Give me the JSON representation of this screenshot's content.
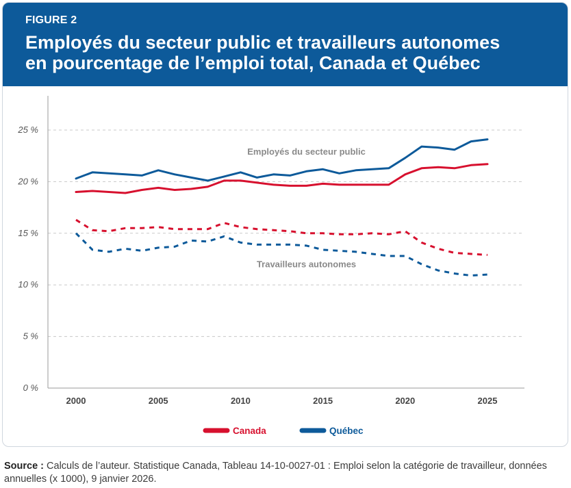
{
  "figure": {
    "label": "FIGURE 2",
    "title_line1": "Employés du secteur public et travailleurs autonomes",
    "title_line2": "en pourcentage de l’emploi total, Canada et Québec"
  },
  "source": {
    "label": "Source :",
    "text": " Calculs  de l’auteur. Statistique Canada, Tableau 14-10-0027-01 : Emploi selon la catégorie de travailleur, données annuelles (x 1000), 9 janvier 2026."
  },
  "colors": {
    "canada": "#d7102e",
    "quebec": "#0d5a9a"
  },
  "chart_data": {
    "type": "line",
    "ylim": [
      0,
      25
    ],
    "xlim": [
      2000,
      2025
    ],
    "y_ticks": [
      0,
      5,
      10,
      15,
      20,
      25
    ],
    "y_tick_labels": [
      "0 %",
      "5 %",
      "10 %",
      "15 %",
      "20 %",
      "25 %"
    ],
    "x_ticks": [
      2000,
      2005,
      2010,
      2015,
      2020,
      2025
    ],
    "x_tick_labels": [
      "2000",
      "2005",
      "2010",
      "2015",
      "2020",
      "2025"
    ],
    "grid": "horizontal-dashed",
    "legend_position": "bottom",
    "legend": [
      {
        "label": "Canada",
        "color": "#d7102e"
      },
      {
        "label": "Québec",
        "color": "#0d5a9a"
      }
    ],
    "annotations": [
      {
        "text": "Employés du secteur public",
        "x": 2014,
        "y": 22.6
      },
      {
        "text": "Travailleurs autonomes",
        "x": 2014,
        "y": 11.7
      }
    ],
    "x": [
      2000,
      2001,
      2002,
      2003,
      2004,
      2005,
      2006,
      2007,
      2008,
      2009,
      2010,
      2011,
      2012,
      2013,
      2014,
      2015,
      2016,
      2017,
      2018,
      2019,
      2020,
      2021,
      2022,
      2023,
      2024,
      2025
    ],
    "series": [
      {
        "name": "Canada",
        "group": "Employés du secteur public",
        "style": "solid",
        "values": [
          19.0,
          19.1,
          19.0,
          18.9,
          19.2,
          19.4,
          19.2,
          19.3,
          19.5,
          20.1,
          20.1,
          19.9,
          19.7,
          19.6,
          19.6,
          19.8,
          19.7,
          19.7,
          19.7,
          19.7,
          20.7,
          21.3,
          21.4,
          21.3,
          21.6,
          21.7
        ]
      },
      {
        "name": "Québec",
        "group": "Employés du secteur public",
        "style": "solid",
        "values": [
          20.3,
          20.9,
          20.8,
          20.7,
          20.6,
          21.1,
          20.7,
          20.4,
          20.1,
          20.5,
          20.9,
          20.4,
          20.7,
          20.6,
          21.0,
          21.2,
          20.8,
          21.1,
          21.2,
          21.3,
          22.3,
          23.4,
          23.3,
          23.1,
          23.9,
          24.1
        ]
      },
      {
        "name": "Canada",
        "group": "Travailleurs autonomes",
        "style": "dashed",
        "values": [
          16.3,
          15.3,
          15.2,
          15.5,
          15.5,
          15.6,
          15.4,
          15.4,
          15.4,
          16.0,
          15.6,
          15.4,
          15.3,
          15.2,
          15.0,
          15.0,
          14.9,
          14.9,
          15.0,
          14.9,
          15.2,
          14.1,
          13.5,
          13.1,
          13.0,
          12.9
        ]
      },
      {
        "name": "Québec",
        "group": "Travailleurs autonomes",
        "style": "dashed",
        "values": [
          15.0,
          13.4,
          13.2,
          13.5,
          13.3,
          13.6,
          13.7,
          14.3,
          14.2,
          14.7,
          14.1,
          13.9,
          13.9,
          13.9,
          13.8,
          13.4,
          13.3,
          13.2,
          13.0,
          12.8,
          12.8,
          12.0,
          11.4,
          11.1,
          10.9,
          11.0
        ]
      }
    ]
  }
}
